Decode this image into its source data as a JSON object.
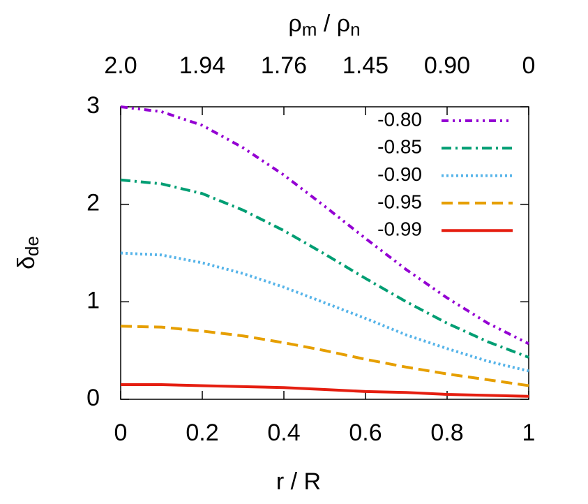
{
  "chart_data": {
    "type": "line",
    "xlabel": "r / R",
    "ylabel": [
      "δ",
      "de"
    ],
    "x2label": [
      "ρ",
      "m",
      " / ρ",
      "n"
    ],
    "x": [
      0,
      0.1,
      0.2,
      0.3,
      0.4,
      0.5,
      0.6,
      0.7,
      0.8,
      0.9,
      1
    ],
    "series": [
      {
        "name": "-0.80",
        "color": "#9400d3",
        "dash": "10 6 3 6 3 6",
        "values": [
          3.0,
          2.95,
          2.81,
          2.58,
          2.3,
          1.98,
          1.65,
          1.33,
          1.04,
          0.78,
          0.57
        ]
      },
      {
        "name": "-0.85",
        "color": "#009e73",
        "dash": "14 6 3 6",
        "values": [
          2.25,
          2.21,
          2.11,
          1.94,
          1.73,
          1.49,
          1.24,
          1.0,
          0.78,
          0.59,
          0.43
        ]
      },
      {
        "name": "-0.90",
        "color": "#56b4e9",
        "dash": "3 4",
        "values": [
          1.5,
          1.48,
          1.4,
          1.29,
          1.15,
          0.99,
          0.83,
          0.66,
          0.52,
          0.39,
          0.29
        ]
      },
      {
        "name": "-0.95",
        "color": "#e69f00",
        "dash": "16 8",
        "values": [
          0.75,
          0.74,
          0.7,
          0.65,
          0.58,
          0.5,
          0.41,
          0.33,
          0.26,
          0.2,
          0.14
        ]
      },
      {
        "name": "-0.99",
        "color": "#e51e10",
        "dash": "none",
        "values": [
          0.15,
          0.15,
          0.14,
          0.13,
          0.12,
          0.1,
          0.08,
          0.07,
          0.05,
          0.04,
          0.03
        ]
      }
    ],
    "xlim": [
      0,
      1
    ],
    "xticks": [
      0,
      0.2,
      0.4,
      0.6,
      0.8,
      1
    ],
    "ylim": [
      0,
      3
    ],
    "yticks": [
      0,
      1,
      2,
      3
    ],
    "x2ticks": [
      {
        "value": 0,
        "label": "2.0"
      },
      {
        "value": 0.2,
        "label": "1.94"
      },
      {
        "value": 0.4,
        "label": "1.76"
      },
      {
        "value": 0.6,
        "label": "1.45"
      },
      {
        "value": 0.8,
        "label": "0.90"
      },
      {
        "value": 1,
        "label": "0"
      }
    ],
    "legend": "top-right",
    "grid": false
  }
}
